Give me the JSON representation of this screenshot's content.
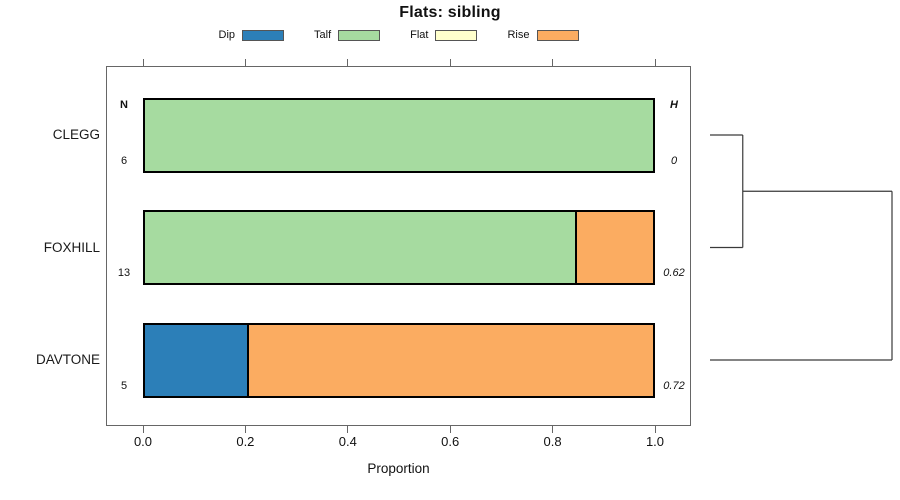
{
  "chart_data": {
    "type": "bar",
    "orientation": "horizontal-stacked",
    "title": "Flats: sibling",
    "xlabel": "Proportion",
    "xlim": [
      0,
      1
    ],
    "x_tick_values": [
      0,
      0.2,
      0.4,
      0.6,
      0.8,
      1.0
    ],
    "x_tick_labels": [
      "0.0",
      "0.2",
      "0.4",
      "0.6",
      "0.8",
      "1.0"
    ],
    "grid": false,
    "legend_position": "top",
    "legend": [
      {
        "label": "Dip",
        "color": "#2c7fb8"
      },
      {
        "label": "Talf",
        "color": "#a6dba0"
      },
      {
        "label": "Flat",
        "color": "#ffffcc"
      },
      {
        "label": "Rise",
        "color": "#fbac61"
      }
    ],
    "left_column_header": "N",
    "right_column_header": "H",
    "rows": [
      {
        "label": "CLEGG",
        "n": "6",
        "h": "0",
        "segments": [
          {
            "category": "Talf",
            "value": 1.0
          }
        ]
      },
      {
        "label": "FOXHILL",
        "n": "13",
        "h": "0.62",
        "segments": [
          {
            "category": "Talf",
            "value": 0.846
          },
          {
            "category": "Rise",
            "value": 0.154
          }
        ]
      },
      {
        "label": "DAVTONE",
        "n": "5",
        "h": "0.72",
        "segments": [
          {
            "category": "Dip",
            "value": 0.2
          },
          {
            "category": "Rise",
            "value": 0.8
          }
        ]
      }
    ],
    "dendrogram": {
      "leaves": [
        "CLEGG",
        "FOXHILL",
        "DAVTONE"
      ],
      "merges": [
        {
          "children": [
            {
              "leaf": 0
            },
            {
              "leaf": 1
            }
          ],
          "height": 0.18
        },
        {
          "children": [
            {
              "merge": 0
            },
            {
              "leaf": 2
            }
          ],
          "height": 1.0
        }
      ]
    }
  }
}
